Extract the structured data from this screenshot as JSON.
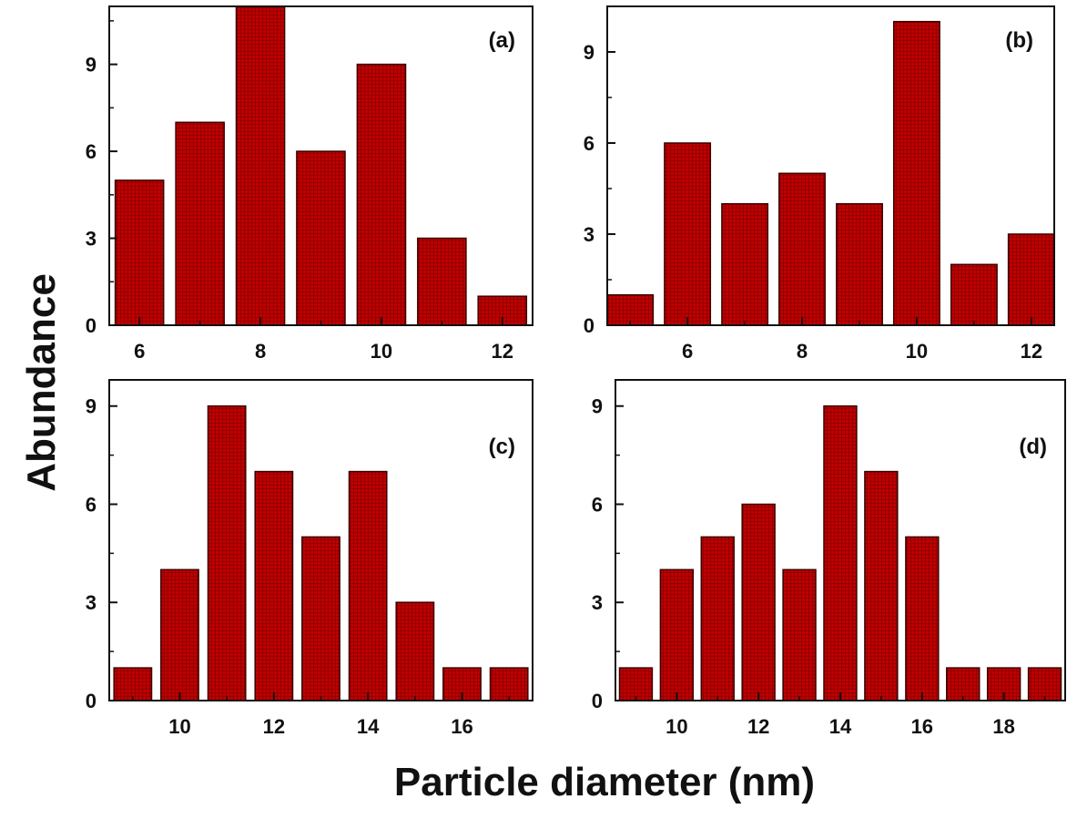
{
  "figure": {
    "ylabel": "Abundance",
    "xlabel": "Particle diameter (nm)",
    "bar_color": "#c00000",
    "bar_edge_color": "#3a0000",
    "axis_color": "#111111"
  },
  "chart_data": [
    {
      "type": "bar",
      "panel_label": "(a)",
      "x": [
        6,
        7,
        8,
        9,
        10,
        11,
        12
      ],
      "values": [
        5,
        7,
        11,
        6,
        9,
        3,
        1
      ],
      "xlim": [
        5.5,
        12.5
      ],
      "ylim": [
        0,
        11
      ],
      "xticks": [
        6,
        8,
        10,
        12
      ],
      "yticks": [
        0,
        3,
        6,
        9
      ],
      "grid": false
    },
    {
      "type": "bar",
      "panel_label": "(b)",
      "x": [
        5,
        6,
        7,
        8,
        9,
        10,
        11,
        12
      ],
      "values": [
        1,
        6,
        4,
        5,
        4,
        10,
        2,
        3
      ],
      "xlim": [
        4.6,
        12.4
      ],
      "ylim": [
        0,
        10.5
      ],
      "xticks": [
        6,
        8,
        10,
        12
      ],
      "yticks": [
        0,
        3,
        6,
        9
      ],
      "grid": false
    },
    {
      "type": "bar",
      "panel_label": "(c)",
      "x": [
        9,
        10,
        11,
        12,
        13,
        14,
        15,
        16,
        17
      ],
      "values": [
        1,
        4,
        9,
        7,
        5,
        7,
        3,
        1,
        1
      ],
      "xlim": [
        8.5,
        17.5
      ],
      "ylim": [
        0,
        9.8
      ],
      "xticks": [
        10,
        12,
        14,
        16
      ],
      "yticks": [
        0,
        3,
        6,
        9
      ],
      "grid": false
    },
    {
      "type": "bar",
      "panel_label": "(d)",
      "x": [
        9,
        10,
        11,
        12,
        13,
        14,
        15,
        16,
        17,
        18,
        19
      ],
      "values": [
        1,
        4,
        5,
        6,
        4,
        9,
        7,
        5,
        1,
        1,
        1
      ],
      "xlim": [
        8.5,
        19.5
      ],
      "ylim": [
        0,
        9.8
      ],
      "xticks": [
        10,
        12,
        14,
        16,
        18
      ],
      "yticks": [
        0,
        3,
        6,
        9
      ],
      "grid": false
    }
  ]
}
